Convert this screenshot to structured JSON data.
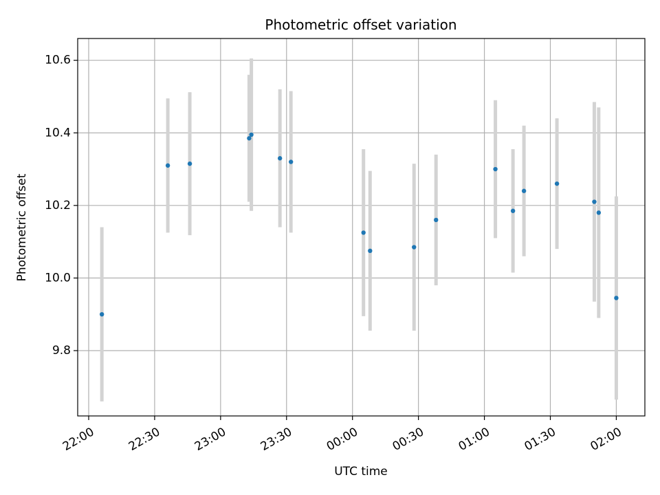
{
  "chart_data": {
    "type": "scatter",
    "title": "Photometric offset variation",
    "xlabel": "UTC time",
    "ylabel": "Photometric offset",
    "x_axis": {
      "kind": "time",
      "range": [
        "21:55",
        "02:13"
      ],
      "tick_labels": [
        "22:00",
        "22:30",
        "23:00",
        "23:30",
        "00:00",
        "00:30",
        "01:00",
        "01:30",
        "02:00"
      ]
    },
    "y_axis": {
      "range": [
        9.62,
        10.66
      ],
      "ticks": [
        9.8,
        10.0,
        10.2,
        10.4,
        10.6
      ],
      "tick_labels": [
        "9.8",
        "10.0",
        "10.2",
        "10.4",
        "10.6"
      ]
    },
    "grid": true,
    "series": [
      {
        "marker_color": "#1f77b4",
        "errorbar_color": "#d3d3d3",
        "points": [
          {
            "x": "22:06",
            "y": 9.9,
            "err": 0.24
          },
          {
            "x": "22:36",
            "y": 10.31,
            "err": 0.185
          },
          {
            "x": "22:46",
            "y": 10.315,
            "err": 0.197
          },
          {
            "x": "23:13",
            "y": 10.385,
            "err": 0.175
          },
          {
            "x": "23:14",
            "y": 10.395,
            "err": 0.21
          },
          {
            "x": "23:27",
            "y": 10.33,
            "err": 0.19
          },
          {
            "x": "23:32",
            "y": 10.32,
            "err": 0.195
          },
          {
            "x": "00:05",
            "y": 10.125,
            "err": 0.23
          },
          {
            "x": "00:08",
            "y": 10.075,
            "err": 0.22
          },
          {
            "x": "00:28",
            "y": 10.085,
            "err": 0.23
          },
          {
            "x": "00:38",
            "y": 10.16,
            "err": 0.18
          },
          {
            "x": "01:05",
            "y": 10.3,
            "err": 0.19
          },
          {
            "x": "01:13",
            "y": 10.185,
            "err": 0.17
          },
          {
            "x": "01:18",
            "y": 10.24,
            "err": 0.18
          },
          {
            "x": "01:33",
            "y": 10.26,
            "err": 0.18
          },
          {
            "x": "01:50",
            "y": 10.21,
            "err": 0.275
          },
          {
            "x": "01:52",
            "y": 10.18,
            "err": 0.29
          },
          {
            "x": "02:00",
            "y": 9.945,
            "err": 0.28
          }
        ]
      }
    ]
  }
}
